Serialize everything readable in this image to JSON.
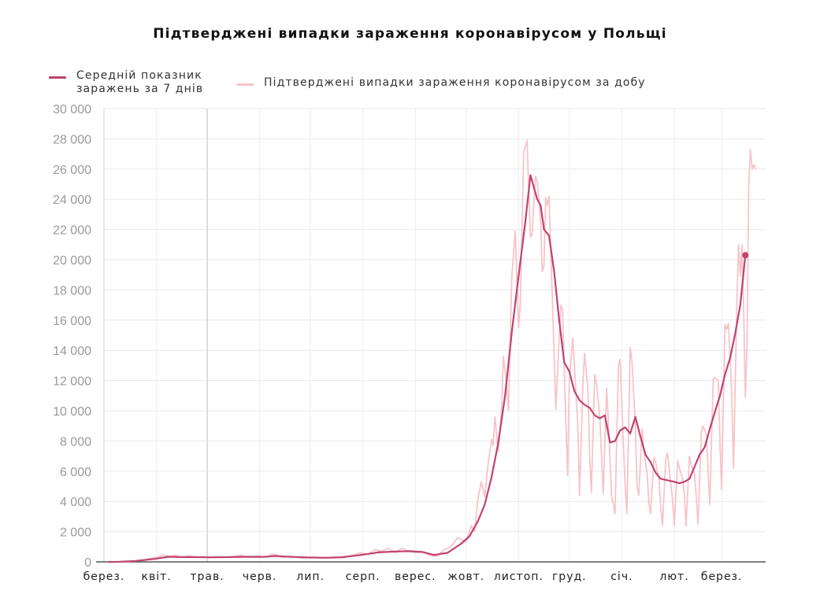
{
  "chart_data": {
    "type": "line",
    "title": "Підтверджені випадки зараження коронавірусом у Польщі",
    "xlabel": "",
    "ylabel": "",
    "ylim": [
      0,
      30000
    ],
    "y_ticks": [
      0,
      2000,
      4000,
      6000,
      8000,
      10000,
      12000,
      14000,
      16000,
      18000,
      20000,
      22000,
      24000,
      26000,
      28000,
      30000
    ],
    "y_tick_labels": [
      "0",
      "2 000",
      "4 000",
      "6 000",
      "8 000",
      "10 000",
      "12 000",
      "14 000",
      "16 000",
      "18 000",
      "20 000",
      "22 000",
      "24 000",
      "26 000",
      "28 000",
      "30 000"
    ],
    "x_range": [
      "2020-03-01",
      "2021-03-27"
    ],
    "x_ticks": [
      "2020-03-01",
      "2020-04-01",
      "2020-05-01",
      "2020-06-01",
      "2020-07-01",
      "2020-08-01",
      "2020-09-01",
      "2020-10-01",
      "2020-11-01",
      "2020-12-01",
      "2021-01-01",
      "2021-02-01",
      "2021-03-01"
    ],
    "x_tick_labels": [
      "берез.",
      "квіт.",
      "трав.",
      "черв.",
      "лип.",
      "серп.",
      "верес.",
      "жовт.",
      "листоп.",
      "груд.",
      "січ.",
      "лют.",
      "берез."
    ],
    "grid": true,
    "legend_position": "top-left",
    "series": [
      {
        "name": "Середній показник заражень за 7 днів",
        "color": "#c0436f",
        "points": [
          [
            "2020-03-04",
            0
          ],
          [
            "2020-03-10",
            10
          ],
          [
            "2020-03-20",
            60
          ],
          [
            "2020-03-31",
            200
          ],
          [
            "2020-04-08",
            340
          ],
          [
            "2020-04-15",
            320
          ],
          [
            "2020-04-25",
            310
          ],
          [
            "2020-05-05",
            300
          ],
          [
            "2020-05-15",
            320
          ],
          [
            "2020-05-25",
            340
          ],
          [
            "2020-06-03",
            330
          ],
          [
            "2020-06-10",
            390
          ],
          [
            "2020-06-20",
            330
          ],
          [
            "2020-06-30",
            290
          ],
          [
            "2020-07-10",
            270
          ],
          [
            "2020-07-20",
            300
          ],
          [
            "2020-07-31",
            460
          ],
          [
            "2020-08-10",
            630
          ],
          [
            "2020-08-20",
            680
          ],
          [
            "2020-08-28",
            710
          ],
          [
            "2020-09-05",
            660
          ],
          [
            "2020-09-12",
            460
          ],
          [
            "2020-09-20",
            600
          ],
          [
            "2020-09-28",
            1200
          ],
          [
            "2020-10-03",
            1700
          ],
          [
            "2020-10-08",
            2700
          ],
          [
            "2020-10-12",
            3800
          ],
          [
            "2020-10-16",
            5600
          ],
          [
            "2020-10-20",
            7900
          ],
          [
            "2020-10-24",
            11000
          ],
          [
            "2020-10-28",
            15200
          ],
          [
            "2020-11-01",
            18900
          ],
          [
            "2020-11-05",
            22500
          ],
          [
            "2020-11-08",
            25600
          ],
          [
            "2020-11-12",
            24000
          ],
          [
            "2020-11-14",
            23600
          ],
          [
            "2020-11-16",
            22000
          ],
          [
            "2020-11-19",
            21600
          ],
          [
            "2020-11-22",
            19200
          ],
          [
            "2020-11-25",
            16000
          ],
          [
            "2020-11-28",
            13200
          ],
          [
            "2020-12-01",
            12600
          ],
          [
            "2020-12-04",
            11300
          ],
          [
            "2020-12-07",
            10700
          ],
          [
            "2020-12-10",
            10400
          ],
          [
            "2020-12-13",
            10200
          ],
          [
            "2020-12-16",
            9700
          ],
          [
            "2020-12-19",
            9500
          ],
          [
            "2020-12-22",
            9700
          ],
          [
            "2020-12-25",
            7900
          ],
          [
            "2020-12-28",
            8000
          ],
          [
            "2020-12-31",
            8700
          ],
          [
            "2021-01-03",
            8900
          ],
          [
            "2021-01-06",
            8500
          ],
          [
            "2021-01-09",
            9600
          ],
          [
            "2021-01-12",
            8300
          ],
          [
            "2021-01-15",
            7100
          ],
          [
            "2021-01-18",
            6600
          ],
          [
            "2021-01-21",
            5900
          ],
          [
            "2021-01-24",
            5500
          ],
          [
            "2021-01-28",
            5400
          ],
          [
            "2021-02-01",
            5300
          ],
          [
            "2021-02-04",
            5200
          ],
          [
            "2021-02-07",
            5300
          ],
          [
            "2021-02-10",
            5500
          ],
          [
            "2021-02-13",
            6300
          ],
          [
            "2021-02-16",
            7100
          ],
          [
            "2021-02-19",
            7600
          ],
          [
            "2021-02-22",
            8800
          ],
          [
            "2021-02-25",
            9900
          ],
          [
            "2021-02-28",
            11000
          ],
          [
            "2021-03-03",
            12400
          ],
          [
            "2021-03-06",
            13500
          ],
          [
            "2021-03-09",
            15100
          ],
          [
            "2021-03-12",
            17000
          ],
          [
            "2021-03-15",
            20300
          ]
        ]
      },
      {
        "name": "Підтверджені випадки зараження коронавірусом за добу",
        "color": "#f7c4c8",
        "points": [
          [
            "2020-03-04",
            0
          ],
          [
            "2020-03-15",
            20
          ],
          [
            "2020-03-25",
            150
          ],
          [
            "2020-04-02",
            330
          ],
          [
            "2020-04-05",
            450
          ],
          [
            "2020-04-09",
            350
          ],
          [
            "2020-04-12",
            450
          ],
          [
            "2020-04-16",
            300
          ],
          [
            "2020-04-20",
            400
          ],
          [
            "2020-04-25",
            320
          ],
          [
            "2020-05-02",
            280
          ],
          [
            "2020-05-06",
            360
          ],
          [
            "2020-05-10",
            300
          ],
          [
            "2020-05-16",
            330
          ],
          [
            "2020-05-21",
            450
          ],
          [
            "2020-05-25",
            300
          ],
          [
            "2020-05-31",
            400
          ],
          [
            "2020-06-05",
            300
          ],
          [
            "2020-06-08",
            500
          ],
          [
            "2020-06-11",
            480
          ],
          [
            "2020-06-14",
            300
          ],
          [
            "2020-06-20",
            380
          ],
          [
            "2020-06-26",
            250
          ],
          [
            "2020-07-03",
            300
          ],
          [
            "2020-07-10",
            280
          ],
          [
            "2020-07-17",
            330
          ],
          [
            "2020-07-24",
            400
          ],
          [
            "2020-07-31",
            600
          ],
          [
            "2020-08-04",
            500
          ],
          [
            "2020-08-08",
            820
          ],
          [
            "2020-08-12",
            700
          ],
          [
            "2020-08-16",
            900
          ],
          [
            "2020-08-20",
            620
          ],
          [
            "2020-08-24",
            900
          ],
          [
            "2020-08-28",
            700
          ],
          [
            "2020-09-02",
            600
          ],
          [
            "2020-09-06",
            650
          ],
          [
            "2020-09-10",
            400
          ],
          [
            "2020-09-14",
            380
          ],
          [
            "2020-09-18",
            800
          ],
          [
            "2020-09-22",
            1000
          ],
          [
            "2020-09-26",
            1600
          ],
          [
            "2020-09-28",
            1500
          ],
          [
            "2020-10-01",
            1300
          ],
          [
            "2020-10-04",
            2400
          ],
          [
            "2020-10-06",
            2000
          ],
          [
            "2020-10-08",
            4200
          ],
          [
            "2020-10-10",
            5300
          ],
          [
            "2020-10-12",
            4300
          ],
          [
            "2020-10-14",
            6500
          ],
          [
            "2020-10-16",
            8100
          ],
          [
            "2020-10-17",
            7700
          ],
          [
            "2020-10-18",
            9600
          ],
          [
            "2020-10-20",
            7300
          ],
          [
            "2020-10-22",
            10200
          ],
          [
            "2020-10-23",
            13600
          ],
          [
            "2020-10-25",
            11700
          ],
          [
            "2020-10-26",
            10000
          ],
          [
            "2020-10-28",
            18800
          ],
          [
            "2020-10-30",
            21900
          ],
          [
            "2020-11-01",
            15500
          ],
          [
            "2020-11-02",
            17000
          ],
          [
            "2020-11-04",
            27100
          ],
          [
            "2020-11-06",
            27900
          ],
          [
            "2020-11-08",
            21500
          ],
          [
            "2020-11-09",
            21700
          ],
          [
            "2020-11-11",
            25500
          ],
          [
            "2020-11-12",
            25200
          ],
          [
            "2020-11-14",
            22600
          ],
          [
            "2020-11-15",
            19200
          ],
          [
            "2020-11-16",
            19600
          ],
          [
            "2020-11-17",
            24100
          ],
          [
            "2020-11-18",
            23600
          ],
          [
            "2020-11-19",
            24200
          ],
          [
            "2020-11-20",
            20600
          ],
          [
            "2020-11-21",
            17300
          ],
          [
            "2020-11-22",
            13700
          ],
          [
            "2020-11-23",
            10100
          ],
          [
            "2020-11-25",
            14800
          ],
          [
            "2020-11-26",
            17000
          ],
          [
            "2020-11-27",
            16700
          ],
          [
            "2020-11-28",
            12800
          ],
          [
            "2020-11-30",
            5700
          ],
          [
            "2020-12-01",
            12000
          ],
          [
            "2020-12-03",
            14800
          ],
          [
            "2020-12-04",
            13000
          ],
          [
            "2020-12-06",
            9100
          ],
          [
            "2020-12-07",
            4400
          ],
          [
            "2020-12-09",
            11800
          ],
          [
            "2020-12-10",
            13800
          ],
          [
            "2020-12-12",
            11400
          ],
          [
            "2020-12-13",
            7000
          ],
          [
            "2020-12-14",
            4600
          ],
          [
            "2020-12-16",
            12400
          ],
          [
            "2020-12-17",
            11800
          ],
          [
            "2020-12-19",
            9600
          ],
          [
            "2020-12-20",
            7000
          ],
          [
            "2020-12-21",
            4500
          ],
          [
            "2020-12-23",
            11500
          ],
          [
            "2020-12-24",
            9400
          ],
          [
            "2020-12-26",
            4300
          ],
          [
            "2020-12-27",
            3800
          ],
          [
            "2020-12-28",
            3200
          ],
          [
            "2020-12-30",
            13000
          ],
          [
            "2020-12-31",
            13400
          ],
          [
            "2021-01-02",
            7700
          ],
          [
            "2021-01-03",
            5000
          ],
          [
            "2021-01-04",
            3200
          ],
          [
            "2021-01-06",
            14200
          ],
          [
            "2021-01-07",
            13300
          ],
          [
            "2021-01-09",
            9000
          ],
          [
            "2021-01-10",
            5000
          ],
          [
            "2021-01-11",
            4400
          ],
          [
            "2021-01-13",
            8800
          ],
          [
            "2021-01-14",
            7400
          ],
          [
            "2021-01-16",
            5800
          ],
          [
            "2021-01-17",
            3900
          ],
          [
            "2021-01-18",
            3200
          ],
          [
            "2021-01-20",
            6900
          ],
          [
            "2021-01-21",
            6600
          ],
          [
            "2021-01-23",
            5400
          ],
          [
            "2021-01-24",
            3700
          ],
          [
            "2021-01-25",
            2400
          ],
          [
            "2021-01-27",
            6800
          ],
          [
            "2021-01-28",
            7200
          ],
          [
            "2021-01-30",
            5100
          ],
          [
            "2021-01-31",
            4100
          ],
          [
            "2021-02-01",
            2400
          ],
          [
            "2021-02-03",
            6700
          ],
          [
            "2021-02-04",
            6200
          ],
          [
            "2021-02-06",
            5500
          ],
          [
            "2021-02-07",
            4400
          ],
          [
            "2021-02-08",
            2400
          ],
          [
            "2021-02-10",
            7000
          ],
          [
            "2021-02-11",
            6400
          ],
          [
            "2021-02-13",
            5800
          ],
          [
            "2021-02-14",
            4300
          ],
          [
            "2021-02-15",
            2500
          ],
          [
            "2021-02-17",
            8600
          ],
          [
            "2021-02-18",
            9000
          ],
          [
            "2021-02-20",
            8400
          ],
          [
            "2021-02-21",
            5900
          ],
          [
            "2021-02-22",
            3800
          ],
          [
            "2021-02-24",
            12100
          ],
          [
            "2021-02-25",
            12200
          ],
          [
            "2021-02-27",
            12000
          ],
          [
            "2021-02-28",
            7900
          ],
          [
            "2021-03-01",
            4800
          ],
          [
            "2021-03-03",
            15700
          ],
          [
            "2021-03-04",
            15400
          ],
          [
            "2021-03-05",
            15800
          ],
          [
            "2021-03-06",
            13600
          ],
          [
            "2021-03-07",
            10900
          ],
          [
            "2021-03-08",
            6200
          ],
          [
            "2021-03-10",
            17200
          ],
          [
            "2021-03-11",
            21000
          ],
          [
            "2021-03-12",
            18900
          ],
          [
            "2021-03-13",
            21000
          ],
          [
            "2021-03-14",
            16800
          ],
          [
            "2021-03-15",
            10900
          ],
          [
            "2021-03-16",
            14400
          ],
          [
            "2021-03-17",
            25000
          ],
          [
            "2021-03-18",
            27300
          ],
          [
            "2021-03-19",
            26000
          ],
          [
            "2021-03-20",
            26300
          ],
          [
            "2021-03-21",
            26000
          ]
        ]
      }
    ]
  }
}
